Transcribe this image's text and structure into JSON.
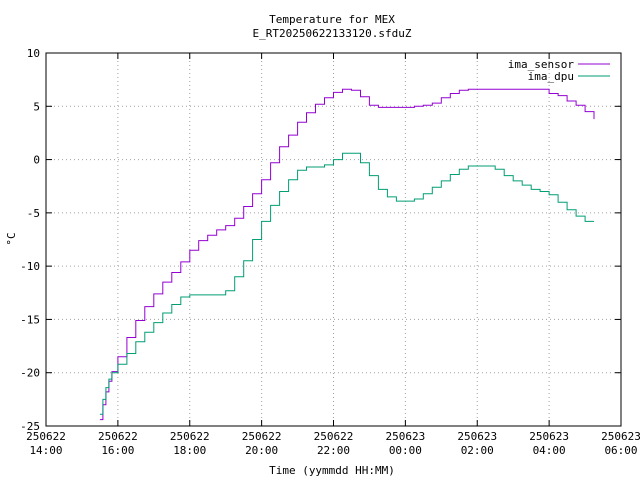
{
  "chart_data": {
    "type": "line",
    "title": "Temperature for MEX",
    "subtitle": "E_RT20250622133120.sfduZ",
    "xlabel": "Time (yymmdd HH:MM)",
    "ylabel": "°C",
    "xlim": [
      "250622 14:00",
      "250623 06:00"
    ],
    "ylim": [
      -25,
      10
    ],
    "grid": true,
    "legend_position": "top-right",
    "x_ticks": [
      {
        "date": "250622",
        "time": "14:00"
      },
      {
        "date": "250622",
        "time": "16:00"
      },
      {
        "date": "250622",
        "time": "18:00"
      },
      {
        "date": "250622",
        "time": "20:00"
      },
      {
        "date": "250622",
        "time": "22:00"
      },
      {
        "date": "250623",
        "time": "00:00"
      },
      {
        "date": "250623",
        "time": "02:00"
      },
      {
        "date": "250623",
        "time": "04:00"
      },
      {
        "date": "250623",
        "time": "06:00"
      }
    ],
    "y_ticks": [
      "10",
      "5",
      "0",
      "-5",
      "-10",
      "-15",
      "-20",
      "-25"
    ],
    "series": [
      {
        "name": "ima_sensor",
        "color": "#9400d3",
        "step": true,
        "x": [
          "250622 15:30",
          "250622 15:35",
          "250622 15:40",
          "250622 15:45",
          "250622 15:50",
          "250622 16:00",
          "250622 16:15",
          "250622 16:30",
          "250622 16:45",
          "250622 17:00",
          "250622 17:15",
          "250622 17:30",
          "250622 17:45",
          "250622 18:00",
          "250622 18:15",
          "250622 18:30",
          "250622 18:45",
          "250622 19:00",
          "250622 19:15",
          "250622 19:30",
          "250622 19:45",
          "250622 20:00",
          "250622 20:15",
          "250622 20:30",
          "250622 20:45",
          "250622 21:00",
          "250622 21:15",
          "250622 21:30",
          "250622 21:45",
          "250622 22:00",
          "250622 22:15",
          "250622 22:30",
          "250622 22:45",
          "250622 23:00",
          "250622 23:15",
          "250622 23:30",
          "250622 23:45",
          "250623 00:00",
          "250623 00:15",
          "250623 00:30",
          "250623 00:45",
          "250623 01:00",
          "250623 01:15",
          "250623 01:30",
          "250623 01:45",
          "250623 02:00",
          "250623 02:30",
          "250623 03:00",
          "250623 03:30",
          "250623 04:00",
          "250623 04:15",
          "250623 04:30",
          "250623 04:45",
          "250623 05:00",
          "250623 05:15"
        ],
        "y": [
          -24.4,
          -23.0,
          -21.8,
          -20.8,
          -19.9,
          -18.5,
          -16.7,
          -15.1,
          -13.8,
          -12.6,
          -11.5,
          -10.6,
          -9.6,
          -8.5,
          -7.6,
          -7.1,
          -6.6,
          -6.2,
          -5.5,
          -4.4,
          -3.2,
          -1.9,
          -0.3,
          1.2,
          2.3,
          3.5,
          4.4,
          5.2,
          5.8,
          6.3,
          6.6,
          6.5,
          5.9,
          5.1,
          4.9,
          4.9,
          4.9,
          4.9,
          5.0,
          5.1,
          5.3,
          5.8,
          6.2,
          6.5,
          6.6,
          6.6,
          6.6,
          6.6,
          6.6,
          6.2,
          6.0,
          5.5,
          5.1,
          4.5,
          3.8
        ]
      },
      {
        "name": "ima_dpu",
        "color": "#009e73",
        "step": true,
        "x": [
          "250622 15:30",
          "250622 15:35",
          "250622 15:40",
          "250622 15:45",
          "250622 15:50",
          "250622 16:00",
          "250622 16:15",
          "250622 16:30",
          "250622 16:45",
          "250622 17:00",
          "250622 17:15",
          "250622 17:30",
          "250622 17:45",
          "250622 18:00",
          "250622 18:15",
          "250622 18:30",
          "250622 18:45",
          "250622 19:00",
          "250622 19:15",
          "250622 19:30",
          "250622 19:45",
          "250622 20:00",
          "250622 20:15",
          "250622 20:30",
          "250622 20:45",
          "250622 21:00",
          "250622 21:15",
          "250622 21:30",
          "250622 21:45",
          "250622 22:00",
          "250622 22:15",
          "250622 22:30",
          "250622 22:45",
          "250622 23:00",
          "250622 23:15",
          "250622 23:30",
          "250622 23:45",
          "250623 00:00",
          "250623 00:15",
          "250623 00:30",
          "250623 00:45",
          "250623 01:00",
          "250623 01:15",
          "250623 01:30",
          "250623 01:45",
          "250623 02:00",
          "250623 02:15",
          "250623 02:30",
          "250623 02:45",
          "250623 03:00",
          "250623 03:15",
          "250623 03:30",
          "250623 03:45",
          "250623 04:00",
          "250623 04:15",
          "250623 04:30",
          "250623 04:45",
          "250623 05:00",
          "250623 05:15"
        ],
        "y": [
          -23.9,
          -22.5,
          -21.4,
          -20.6,
          -20.0,
          -19.2,
          -18.2,
          -17.1,
          -16.2,
          -15.3,
          -14.4,
          -13.6,
          -12.9,
          -12.7,
          -12.7,
          -12.7,
          -12.7,
          -12.3,
          -11.0,
          -9.5,
          -7.5,
          -5.8,
          -4.3,
          -3.0,
          -1.9,
          -1.0,
          -0.7,
          -0.7,
          -0.5,
          0.0,
          0.6,
          0.6,
          -0.3,
          -1.5,
          -2.8,
          -3.5,
          -3.9,
          -3.9,
          -3.7,
          -3.2,
          -2.6,
          -2.0,
          -1.4,
          -0.9,
          -0.6,
          -0.6,
          -0.6,
          -0.9,
          -1.5,
          -2.0,
          -2.4,
          -2.8,
          -3.0,
          -3.3,
          -4.0,
          -4.7,
          -5.3,
          -5.8,
          -5.8
        ]
      }
    ]
  }
}
